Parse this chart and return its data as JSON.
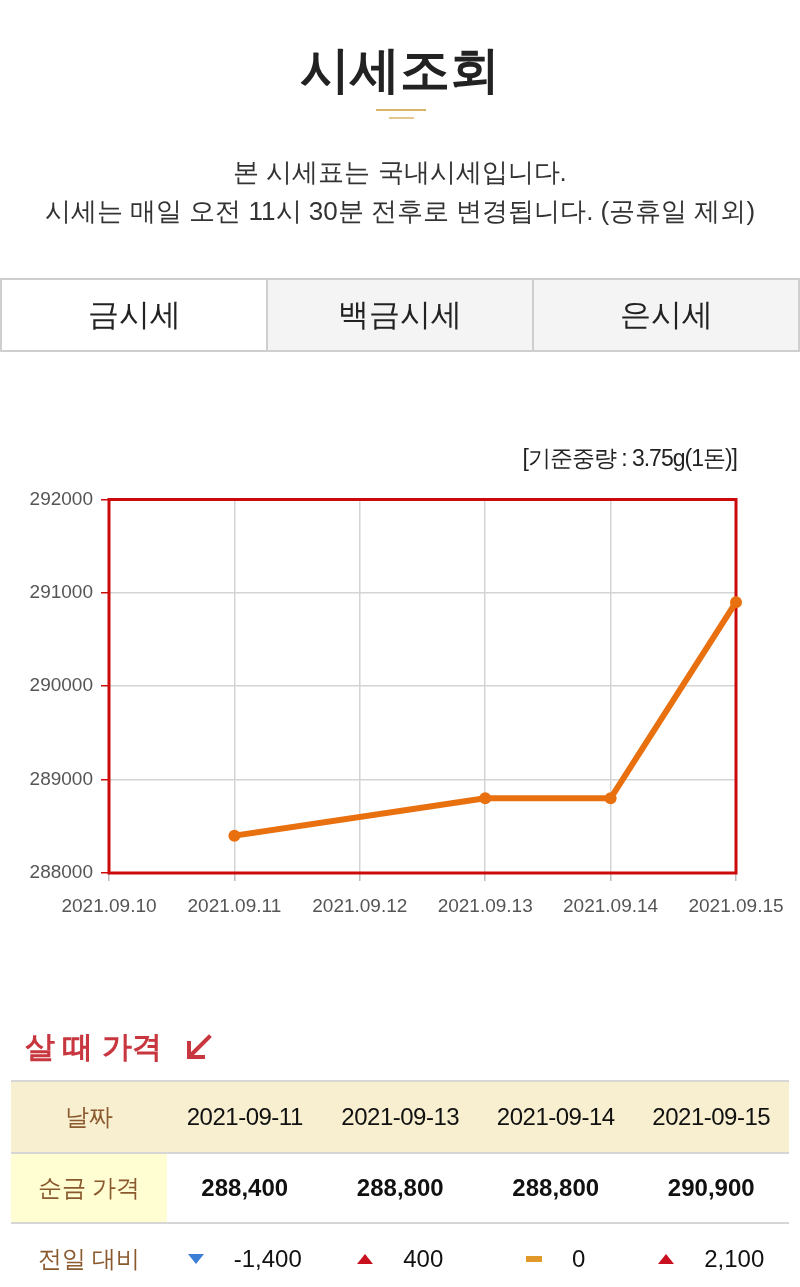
{
  "chart_data": [
    {
      "type": "other",
      "title": "시세조회",
      "subtitle": "본 시세표는 국내시세입니다.\n시세는 매일 오전 11시 30분 전후로 변경됩니다. (공휴일 제외)",
      "annotations": [
        "금시세",
        "백금시세",
        "은시세"
      ]
    },
    {
      "type": "line",
      "annotations": [
        "[기준중량 : 3.75g(1돈)]"
      ],
      "x": [
        "2021-09-11",
        "2021-09-13",
        "2021-09-14",
        "2021-09-15"
      ],
      "series": [
        {
          "color": "#e8700f",
          "values": [
            288400,
            288800,
            288800,
            290900
          ]
        }
      ],
      "xlim": [
        "2021-09-10",
        "2021-09-15"
      ],
      "xticks": [
        {
          "value": "2021-09-10",
          "label": "2021.09.10"
        },
        {
          "value": "2021-09-11",
          "label": "2021.09.11"
        },
        {
          "value": "2021-09-12",
          "label": "2021.09.12"
        },
        {
          "value": "2021-09-13",
          "label": "2021.09.13"
        },
        {
          "value": "2021-09-14",
          "label": "2021.09.14"
        },
        {
          "value": "2021-09-15",
          "label": "2021.09.15"
        }
      ],
      "ylim": [
        288000,
        292000
      ],
      "yticks": [
        288000,
        289000,
        290000,
        291000,
        292000
      ],
      "grid": true,
      "marker": "circle",
      "line_style": "solid"
    },
    {
      "type": "other",
      "title": "살 때 가격",
      "xlabel": "날짜",
      "categories": [
        "2021-09-11",
        "2021-09-13",
        "2021-09-14",
        "2021-09-15"
      ],
      "series": [
        {
          "name": "순금 가격",
          "values": [
            288400,
            288800,
            288800,
            290900
          ],
          "value_labels": [
            "288,400",
            "288,800",
            "288,800",
            "290,900"
          ]
        },
        {
          "name": "전일 대비",
          "values": [
            -1400,
            400,
            0,
            2100
          ],
          "value_labels": [
            "-1,400",
            "400",
            "0",
            "2,100"
          ],
          "marker": "triangle"
        }
      ]
    }
  ]
}
